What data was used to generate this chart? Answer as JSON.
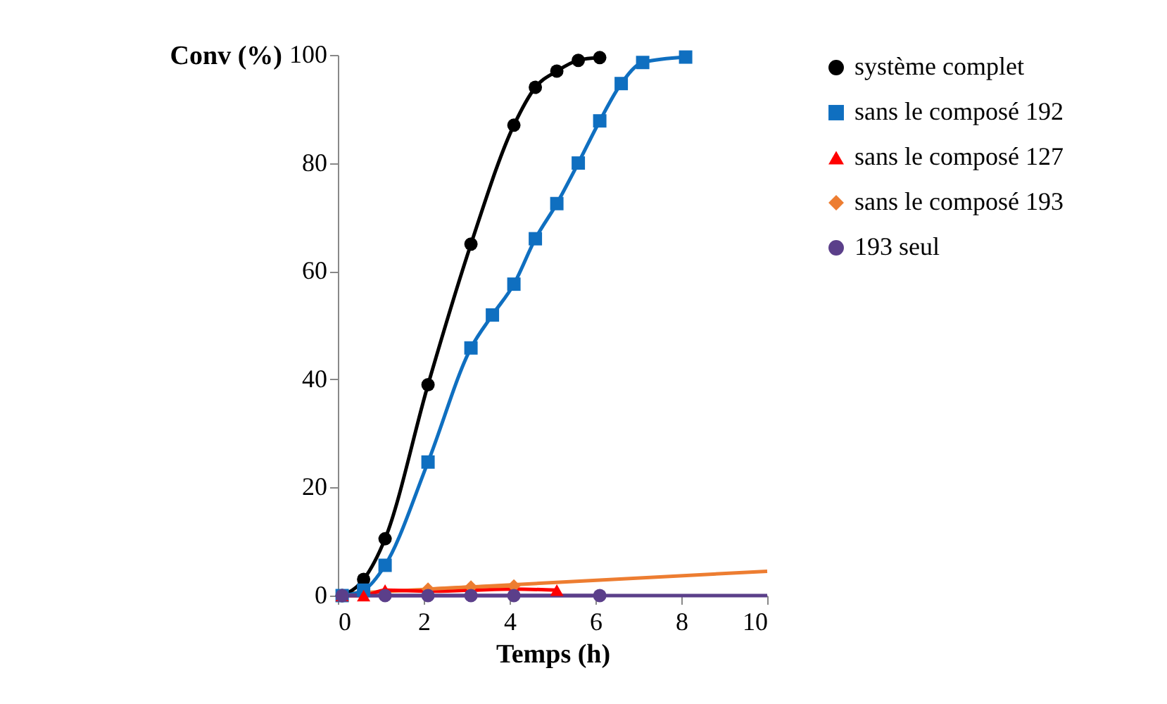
{
  "chart_data": {
    "type": "line",
    "xlabel": "Temps (h)",
    "ylabel": "Conv (%)",
    "xlim": [
      0,
      10
    ],
    "ylim": [
      0,
      100
    ],
    "xticks": [
      0,
      2,
      4,
      6,
      8,
      10
    ],
    "yticks": [
      0,
      20,
      40,
      60,
      80,
      100
    ],
    "grid": false,
    "legend": "right",
    "line_style": "solid",
    "series": [
      {
        "name": "système complet",
        "color": "#000000",
        "marker": "circle",
        "x": [
          0.1,
          0.6,
          1.1,
          2.1,
          3.1,
          4.1,
          4.6,
          5.1,
          5.6,
          6.1
        ],
        "values": [
          0,
          3,
          10.5,
          39,
          65,
          87,
          94,
          97,
          99,
          99.5
        ]
      },
      {
        "name": "sans le composé 192",
        "color": "#0f6fc0",
        "marker": "square",
        "x": [
          0.1,
          0.6,
          1.1,
          2.1,
          3.1,
          3.6,
          4.1,
          4.6,
          5.1,
          5.6,
          6.1,
          6.6,
          7.1,
          8.1
        ],
        "values": [
          0,
          1,
          5.6,
          24.7,
          45.8,
          51.9,
          57.6,
          66,
          72.5,
          80,
          87.8,
          94.7,
          98.6,
          99.6
        ]
      },
      {
        "name": "sans le composé 127",
        "color": "#ff0000",
        "marker": "triangle",
        "x": [
          0.1,
          0.6,
          1.1,
          2.1,
          3.1,
          4.1,
          5.1
        ],
        "values": [
          0,
          0,
          1,
          0.8,
          1,
          1.2,
          1
        ]
      },
      {
        "name": "sans le composé 193",
        "color": "#ed7d31",
        "marker": "diamond",
        "x": [
          2.1,
          3.1,
          4.1
        ],
        "values": [
          1.2,
          1.6,
          1.8
        ]
      },
      {
        "name": "193 seul",
        "color": "#5b3f8a",
        "marker": "circle",
        "x": [
          0.1,
          1.1,
          2.1,
          3.1,
          4.1,
          6.1
        ],
        "values": [
          0,
          0,
          0,
          0,
          0,
          0
        ]
      },
      {
        "type": "line",
        "color": "#ed7d31",
        "x": [
          0,
          10
        ],
        "values": [
          0.3,
          4.5
        ]
      },
      {
        "type": "line",
        "color": "#5b3f8a",
        "x": [
          0,
          10
        ],
        "values": [
          0,
          0
        ]
      }
    ]
  }
}
